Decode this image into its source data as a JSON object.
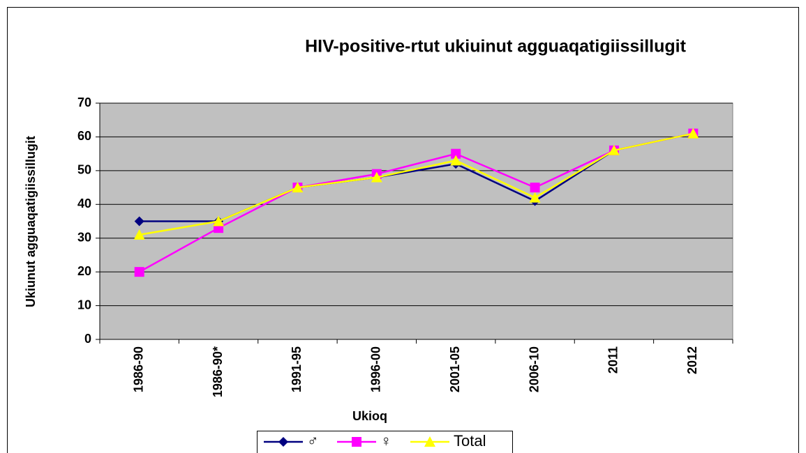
{
  "chart_data": {
    "type": "line",
    "title": "HIV-positive-rtut ukiuinut agguaqatigiissillugit",
    "xlabel": "Ukioq",
    "ylabel": "Ukiunut agguaqatigiissillugit",
    "categories": [
      "1986-90",
      "1986-90*",
      "1991-95",
      "1996-00",
      "2001-05",
      "2006-10",
      "2011",
      "2012"
    ],
    "series": [
      {
        "name": "♂",
        "color": "#000080",
        "marker": "diamond",
        "values": [
          35,
          35,
          45,
          48,
          52,
          41,
          56,
          61
        ]
      },
      {
        "name": "♀",
        "color": "#ff00ff",
        "marker": "square",
        "values": [
          20,
          33,
          45,
          49,
          55,
          45,
          56,
          61
        ]
      },
      {
        "name": "Total",
        "color": "#ffff00",
        "marker": "triangle",
        "values": [
          31,
          35,
          45,
          48,
          53,
          42,
          56,
          61
        ]
      }
    ],
    "ylim": [
      0,
      70
    ],
    "yticks": [
      0,
      10,
      20,
      30,
      40,
      50,
      60,
      70
    ],
    "grid": true,
    "legend": "bottom"
  }
}
